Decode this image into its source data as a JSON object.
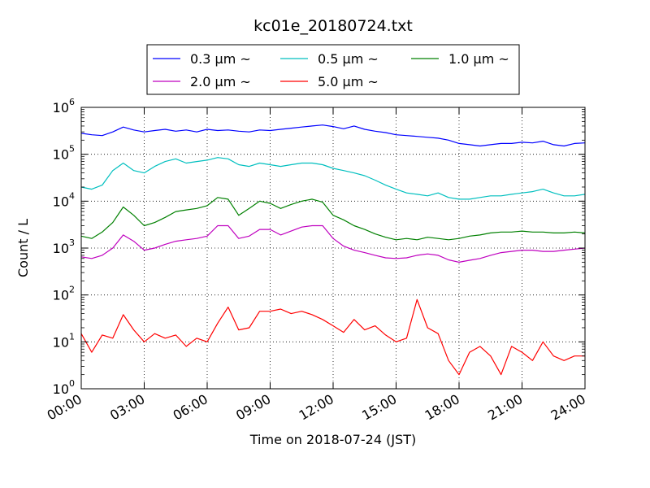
{
  "chart_data": {
    "type": "line",
    "title": "kc01e_20180724.txt",
    "xlabel": "Time on 2018-07-24 (JST)",
    "ylabel": "Count / L",
    "y_scale": "log",
    "ylim": [
      1,
      1000000
    ],
    "xlim": [
      0,
      24
    ],
    "x_ticks": [
      {
        "value": 0,
        "label": "00:00"
      },
      {
        "value": 3,
        "label": "03:00"
      },
      {
        "value": 6,
        "label": "06:00"
      },
      {
        "value": 9,
        "label": "09:00"
      },
      {
        "value": 12,
        "label": "12:00"
      },
      {
        "value": 15,
        "label": "15:00"
      },
      {
        "value": 18,
        "label": "18:00"
      },
      {
        "value": 21,
        "label": "21:00"
      },
      {
        "value": 24,
        "label": "24:00"
      }
    ],
    "y_ticks": [
      {
        "value": 1,
        "base": "10",
        "exp": "0"
      },
      {
        "value": 10,
        "base": "10",
        "exp": "1"
      },
      {
        "value": 100,
        "base": "10",
        "exp": "2"
      },
      {
        "value": 1000,
        "base": "10",
        "exp": "3"
      },
      {
        "value": 10000,
        "base": "10",
        "exp": "4"
      },
      {
        "value": 100000,
        "base": "10",
        "exp": "5"
      },
      {
        "value": 1000000,
        "base": "10",
        "exp": "6"
      }
    ],
    "grid": true,
    "legend_position": "top",
    "series": [
      {
        "name": "0.3 μm ~",
        "color": "#0000ff",
        "x": [
          0,
          0.5,
          1,
          1.5,
          2,
          2.5,
          3,
          3.5,
          4,
          4.5,
          5,
          5.5,
          6,
          6.5,
          7,
          7.5,
          8,
          8.5,
          9,
          9.5,
          10,
          10.5,
          11,
          11.5,
          12,
          12.5,
          13,
          13.5,
          14,
          14.5,
          15,
          15.5,
          16,
          16.5,
          17,
          17.5,
          18,
          18.5,
          19,
          19.5,
          20,
          20.5,
          21,
          21.5,
          22,
          22.5,
          23,
          23.5,
          24
        ],
        "y": [
          280000,
          260000,
          250000,
          300000,
          380000,
          330000,
          300000,
          320000,
          340000,
          310000,
          330000,
          300000,
          340000,
          320000,
          330000,
          310000,
          300000,
          330000,
          320000,
          340000,
          360000,
          380000,
          400000,
          420000,
          390000,
          350000,
          400000,
          340000,
          310000,
          290000,
          260000,
          250000,
          240000,
          230000,
          220000,
          200000,
          170000,
          160000,
          150000,
          160000,
          170000,
          170000,
          180000,
          175000,
          190000,
          160000,
          150000,
          170000,
          175000
        ]
      },
      {
        "name": "0.5 μm ~",
        "color": "#00bfbf",
        "x": [
          0,
          0.5,
          1,
          1.5,
          2,
          2.5,
          3,
          3.5,
          4,
          4.5,
          5,
          5.5,
          6,
          6.5,
          7,
          7.5,
          8,
          8.5,
          9,
          9.5,
          10,
          10.5,
          11,
          11.5,
          12,
          12.5,
          13,
          13.5,
          14,
          14.5,
          15,
          15.5,
          16,
          16.5,
          17,
          17.5,
          18,
          18.5,
          19,
          19.5,
          20,
          20.5,
          21,
          21.5,
          22,
          22.5,
          23,
          23.5,
          24
        ],
        "y": [
          20000,
          18000,
          22000,
          45000,
          65000,
          45000,
          40000,
          55000,
          70000,
          80000,
          65000,
          70000,
          75000,
          85000,
          80000,
          60000,
          55000,
          65000,
          60000,
          55000,
          60000,
          65000,
          65000,
          60000,
          50000,
          45000,
          40000,
          35000,
          28000,
          22000,
          18000,
          15000,
          14000,
          13000,
          15000,
          12000,
          11000,
          11000,
          12000,
          13000,
          13000,
          14000,
          15000,
          16000,
          18000,
          15000,
          13000,
          13000,
          14000
        ]
      },
      {
        "name": "1.0 μm ~",
        "color": "#008000",
        "x": [
          0,
          0.5,
          1,
          1.5,
          2,
          2.5,
          3,
          3.5,
          4,
          4.5,
          5,
          5.5,
          6,
          6.5,
          7,
          7.5,
          8,
          8.5,
          9,
          9.5,
          10,
          10.5,
          11,
          11.5,
          12,
          12.5,
          13,
          13.5,
          14,
          14.5,
          15,
          15.5,
          16,
          16.5,
          17,
          17.5,
          18,
          18.5,
          19,
          19.5,
          20,
          20.5,
          21,
          21.5,
          22,
          22.5,
          23,
          23.5,
          24
        ],
        "y": [
          1800,
          1600,
          2200,
          3500,
          7500,
          5000,
          3000,
          3500,
          4500,
          6000,
          6500,
          7000,
          8000,
          12000,
          11000,
          5000,
          7000,
          10000,
          9000,
          7000,
          8500,
          10000,
          11000,
          9500,
          5000,
          4000,
          3000,
          2500,
          2000,
          1700,
          1500,
          1600,
          1500,
          1700,
          1600,
          1500,
          1600,
          1800,
          1900,
          2100,
          2200,
          2200,
          2300,
          2200,
          2200,
          2100,
          2100,
          2200,
          2100
        ]
      },
      {
        "name": "2.0 μm ~",
        "color": "#bf00bf",
        "x": [
          0,
          0.5,
          1,
          1.5,
          2,
          2.5,
          3,
          3.5,
          4,
          4.5,
          5,
          5.5,
          6,
          6.5,
          7,
          7.5,
          8,
          8.5,
          9,
          9.5,
          10,
          10.5,
          11,
          11.5,
          12,
          12.5,
          13,
          13.5,
          14,
          14.5,
          15,
          15.5,
          16,
          16.5,
          17,
          17.5,
          18,
          18.5,
          19,
          19.5,
          20,
          20.5,
          21,
          21.5,
          22,
          22.5,
          23,
          23.5,
          24
        ],
        "y": [
          650,
          600,
          700,
          1000,
          1900,
          1400,
          900,
          1000,
          1200,
          1400,
          1500,
          1600,
          1800,
          3000,
          3000,
          1600,
          1800,
          2500,
          2500,
          1900,
          2300,
          2800,
          3000,
          3000,
          1600,
          1100,
          900,
          800,
          700,
          620,
          600,
          620,
          700,
          750,
          700,
          560,
          500,
          550,
          600,
          700,
          800,
          850,
          900,
          900,
          850,
          850,
          900,
          950,
          1000
        ]
      },
      {
        "name": "5.0 μm ~",
        "color": "#ff0000",
        "x": [
          0,
          0.5,
          1,
          1.5,
          2,
          2.5,
          3,
          3.5,
          4,
          4.5,
          5,
          5.5,
          6,
          6.5,
          7,
          7.5,
          8,
          8.5,
          9,
          9.5,
          10,
          10.5,
          11,
          11.5,
          12,
          12.5,
          13,
          13.5,
          14,
          14.5,
          15,
          15.5,
          16,
          16.5,
          17,
          17.5,
          18,
          18.5,
          19,
          19.5,
          20,
          20.5,
          21,
          21.5,
          22,
          22.5,
          23,
          23.5,
          24
        ],
        "y": [
          15,
          6,
          14,
          12,
          38,
          18,
          10,
          15,
          12,
          14,
          8,
          12,
          10,
          25,
          55,
          18,
          20,
          45,
          45,
          50,
          40,
          45,
          38,
          30,
          22,
          16,
          30,
          18,
          22,
          14,
          10,
          12,
          80,
          20,
          15,
          4,
          2,
          6,
          8,
          5,
          2,
          8,
          6,
          4,
          10,
          5,
          4,
          5,
          5
        ]
      }
    ]
  }
}
